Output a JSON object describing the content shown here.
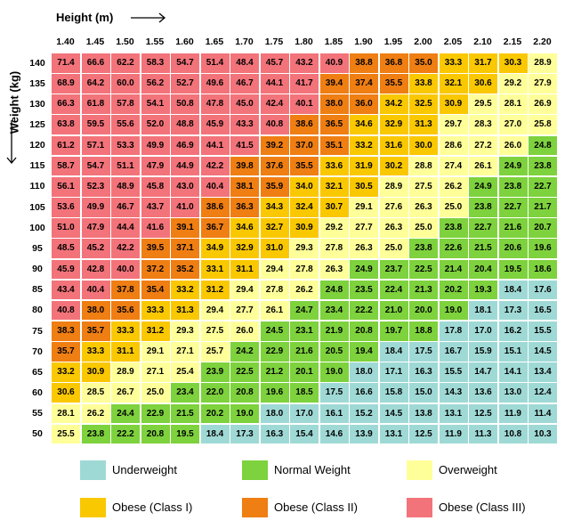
{
  "header": {
    "x_axis_title": "Height  (m)",
    "y_axis_title": "Weight  (kg)"
  },
  "colors": {
    "U": "#9fd9d5",
    "N": "#7ed23d",
    "W": "#ffff99",
    "C1": "#fac800",
    "C2": "#ef7e13",
    "C3": "#f3737a"
  },
  "legend": [
    {
      "key": "U",
      "label": "Underweight"
    },
    {
      "key": "N",
      "label": "Normal Weight"
    },
    {
      "key": "W",
      "label": "Overweight"
    },
    {
      "key": "C1",
      "label": "Obese (Class I)"
    },
    {
      "key": "C2",
      "label": "Obese (Class II)"
    },
    {
      "key": "C3",
      "label": "Obese (Class III)"
    }
  ],
  "chart_data": {
    "type": "heatmap",
    "xlabel": "Height  (m)",
    "ylabel": "Weight  (kg)",
    "x": [
      "1.40",
      "1.45",
      "1.50",
      "1.55",
      "1.60",
      "1.65",
      "1.70",
      "1.75",
      "1.80",
      "1.85",
      "1.90",
      "1.95",
      "2.00",
      "2.05",
      "2.10",
      "2.15",
      "2.20"
    ],
    "y": [
      "140",
      "135",
      "130",
      "125",
      "120",
      "115",
      "110",
      "105",
      "100",
      "95",
      "90",
      "85",
      "80",
      "75",
      "70",
      "65",
      "60",
      "55",
      "50"
    ],
    "values": [
      [
        "71.4",
        "66.6",
        "62.2",
        "58.3",
        "54.7",
        "51.4",
        "48.4",
        "45.7",
        "43.2",
        "40.9",
        "38.8",
        "36.8",
        "35.0",
        "33.3",
        "31.7",
        "30.3",
        "28.9"
      ],
      [
        "68.9",
        "64.2",
        "60.0",
        "56.2",
        "52.7",
        "49.6",
        "46.7",
        "44.1",
        "41.7",
        "39.4",
        "37.4",
        "35.5",
        "33.8",
        "32.1",
        "30.6",
        "29.2",
        "27.9"
      ],
      [
        "66.3",
        "61.8",
        "57.8",
        "54.1",
        "50.8",
        "47.8",
        "45.0",
        "42.4",
        "40.1",
        "38.0",
        "36.0",
        "34.2",
        "32.5",
        "30.9",
        "29.5",
        "28.1",
        "26.9"
      ],
      [
        "63.8",
        "59.5",
        "55.6",
        "52.0",
        "48.8",
        "45.9",
        "43.3",
        "40.8",
        "38.6",
        "36.5",
        "34.6",
        "32.9",
        "31.3",
        "29.7",
        "28.3",
        "27.0",
        "25.8"
      ],
      [
        "61.2",
        "57.1",
        "53.3",
        "49.9",
        "46.9",
        "44.1",
        "41.5",
        "39.2",
        "37.0",
        "35.1",
        "33.2",
        "31.6",
        "30.0",
        "28.6",
        "27.2",
        "26.0",
        "24.8"
      ],
      [
        "58.7",
        "54.7",
        "51.1",
        "47.9",
        "44.9",
        "42.2",
        "39.8",
        "37.6",
        "35.5",
        "33.6",
        "31.9",
        "30.2",
        "28.8",
        "27.4",
        "26.1",
        "24.9",
        "23.8"
      ],
      [
        "56.1",
        "52.3",
        "48.9",
        "45.8",
        "43.0",
        "40.4",
        "38.1",
        "35.9",
        "34.0",
        "32.1",
        "30.5",
        "28.9",
        "27.5",
        "26.2",
        "24.9",
        "23.8",
        "22.7"
      ],
      [
        "53.6",
        "49.9",
        "46.7",
        "43.7",
        "41.0",
        "38.6",
        "36.3",
        "34.3",
        "32.4",
        "30.7",
        "29.1",
        "27.6",
        "26.3",
        "25.0",
        "23.8",
        "22.7",
        "21.7"
      ],
      [
        "51.0",
        "47.9",
        "44.4",
        "41.6",
        "39.1",
        "36.7",
        "34.6",
        "32.7",
        "30.9",
        "29.2",
        "27.7",
        "26.3",
        "25.0",
        "23.8",
        "22.7",
        "21.6",
        "20.7"
      ],
      [
        "48.5",
        "45.2",
        "42.2",
        "39.5",
        "37.1",
        "34.9",
        "32.9",
        "31.0",
        "29.3",
        "27.8",
        "26.3",
        "25.0",
        "23.8",
        "22.6",
        "21.5",
        "20.6",
        "19.6"
      ],
      [
        "45.9",
        "42.8",
        "40.0",
        "37.2",
        "35.2",
        "33.1",
        "31.1",
        "29.4",
        "27.8",
        "26.3",
        "24.9",
        "23.7",
        "22.5",
        "21.4",
        "20.4",
        "19.5",
        "18.6"
      ],
      [
        "43.4",
        "40.4",
        "37.8",
        "35.4",
        "33.2",
        "31.2",
        "29.4",
        "27.8",
        "26.2",
        "24.8",
        "23.5",
        "22.4",
        "21.3",
        "20.2",
        "19.3",
        "18.4",
        "17.6"
      ],
      [
        "40.8",
        "38.0",
        "35.6",
        "33.3",
        "31.3",
        "29.4",
        "27.7",
        "26.1",
        "24.7",
        "23.4",
        "22.2",
        "21.0",
        "20.0",
        "19.0",
        "18.1",
        "17.3",
        "16.5"
      ],
      [
        "38.3",
        "35.7",
        "33.3",
        "31.2",
        "29.3",
        "27.5",
        "26.0",
        "24.5",
        "23.1",
        "21.9",
        "20.8",
        "19.7",
        "18.8",
        "17.8",
        "17.0",
        "16.2",
        "15.5"
      ],
      [
        "35.7",
        "33.3",
        "31.1",
        "29.1",
        "27.1",
        "25.7",
        "24.2",
        "22.9",
        "21.6",
        "20.5",
        "19.4",
        "18.4",
        "17.5",
        "16.7",
        "15.9",
        "15.1",
        "14.5"
      ],
      [
        "33.2",
        "30.9",
        "28.9",
        "27.1",
        "25.4",
        "23.9",
        "22.5",
        "21.2",
        "20.1",
        "19.0",
        "18.0",
        "17.1",
        "16.3",
        "15.5",
        "14.7",
        "14.1",
        "13.4"
      ],
      [
        "30.6",
        "28.5",
        "26.7",
        "25.0",
        "23.4",
        "22.0",
        "20.8",
        "19.6",
        "18.5",
        "17.5",
        "16.6",
        "15.8",
        "15.0",
        "14.3",
        "13.6",
        "13.0",
        "12.4"
      ],
      [
        "28.1",
        "26.2",
        "24.4",
        "22.9",
        "21.5",
        "20.2",
        "19.0",
        "18.0",
        "17.0",
        "16.1",
        "15.2",
        "14.5",
        "13.8",
        "13.1",
        "12.5",
        "11.9",
        "11.4"
      ],
      [
        "25.5",
        "23.8",
        "22.2",
        "20.8",
        "19.5",
        "18.4",
        "17.3",
        "16.3",
        "15.4",
        "14.6",
        "13.9",
        "13.1",
        "12.5",
        "11.9",
        "11.3",
        "10.8",
        "10.3"
      ]
    ],
    "categories": [
      [
        "C3",
        "C3",
        "C3",
        "C3",
        "C3",
        "C3",
        "C3",
        "C3",
        "C3",
        "C3",
        "C2",
        "C2",
        "C2",
        "C1",
        "C1",
        "C1",
        "W"
      ],
      [
        "C3",
        "C3",
        "C3",
        "C3",
        "C3",
        "C3",
        "C3",
        "C3",
        "C3",
        "C2",
        "C2",
        "C2",
        "C1",
        "C1",
        "C1",
        "W",
        "W"
      ],
      [
        "C3",
        "C3",
        "C3",
        "C3",
        "C3",
        "C3",
        "C3",
        "C3",
        "C3",
        "C2",
        "C2",
        "C1",
        "C1",
        "C1",
        "W",
        "W",
        "W"
      ],
      [
        "C3",
        "C3",
        "C3",
        "C3",
        "C3",
        "C3",
        "C3",
        "C3",
        "C2",
        "C2",
        "C1",
        "C1",
        "C1",
        "W",
        "W",
        "W",
        "W"
      ],
      [
        "C3",
        "C3",
        "C3",
        "C3",
        "C3",
        "C3",
        "C3",
        "C2",
        "C2",
        "C2",
        "C1",
        "C1",
        "C1",
        "W",
        "W",
        "W",
        "N"
      ],
      [
        "C3",
        "C3",
        "C3",
        "C3",
        "C3",
        "C3",
        "C2",
        "C2",
        "C2",
        "C1",
        "C1",
        "C1",
        "W",
        "W",
        "W",
        "N",
        "N"
      ],
      [
        "C3",
        "C3",
        "C3",
        "C3",
        "C3",
        "C3",
        "C2",
        "C2",
        "C1",
        "C1",
        "C1",
        "W",
        "W",
        "W",
        "N",
        "N",
        "N"
      ],
      [
        "C3",
        "C3",
        "C3",
        "C3",
        "C3",
        "C2",
        "C2",
        "C1",
        "C1",
        "C1",
        "W",
        "W",
        "W",
        "W",
        "N",
        "N",
        "N"
      ],
      [
        "C3",
        "C3",
        "C3",
        "C3",
        "C2",
        "C2",
        "C1",
        "C1",
        "C1",
        "W",
        "W",
        "W",
        "W",
        "N",
        "N",
        "N",
        "N"
      ],
      [
        "C3",
        "C3",
        "C3",
        "C2",
        "C2",
        "C1",
        "C1",
        "C1",
        "W",
        "W",
        "W",
        "W",
        "N",
        "N",
        "N",
        "N",
        "N"
      ],
      [
        "C3",
        "C3",
        "C3",
        "C2",
        "C2",
        "C1",
        "C1",
        "W",
        "W",
        "W",
        "N",
        "N",
        "N",
        "N",
        "N",
        "N",
        "N"
      ],
      [
        "C3",
        "C3",
        "C2",
        "C2",
        "C1",
        "C1",
        "W",
        "W",
        "W",
        "N",
        "N",
        "N",
        "N",
        "N",
        "N",
        "U",
        "U"
      ],
      [
        "C3",
        "C2",
        "C2",
        "C1",
        "C1",
        "W",
        "W",
        "W",
        "N",
        "N",
        "N",
        "N",
        "N",
        "N",
        "U",
        "U",
        "U"
      ],
      [
        "C2",
        "C2",
        "C1",
        "C1",
        "W",
        "W",
        "W",
        "N",
        "N",
        "N",
        "N",
        "N",
        "N",
        "U",
        "U",
        "U",
        "U"
      ],
      [
        "C2",
        "C1",
        "C1",
        "W",
        "W",
        "W",
        "N",
        "N",
        "N",
        "N",
        "N",
        "U",
        "U",
        "U",
        "U",
        "U",
        "U"
      ],
      [
        "C1",
        "C1",
        "W",
        "W",
        "W",
        "N",
        "N",
        "N",
        "N",
        "N",
        "U",
        "U",
        "U",
        "U",
        "U",
        "U",
        "U"
      ],
      [
        "C1",
        "W",
        "W",
        "W",
        "N",
        "N",
        "N",
        "N",
        "N",
        "U",
        "U",
        "U",
        "U",
        "U",
        "U",
        "U",
        "U"
      ],
      [
        "W",
        "W",
        "N",
        "N",
        "N",
        "N",
        "N",
        "U",
        "U",
        "U",
        "U",
        "U",
        "U",
        "U",
        "U",
        "U",
        "U"
      ],
      [
        "W",
        "N",
        "N",
        "N",
        "N",
        "U",
        "U",
        "U",
        "U",
        "U",
        "U",
        "U",
        "U",
        "U",
        "U",
        "U",
        "U"
      ]
    ]
  }
}
